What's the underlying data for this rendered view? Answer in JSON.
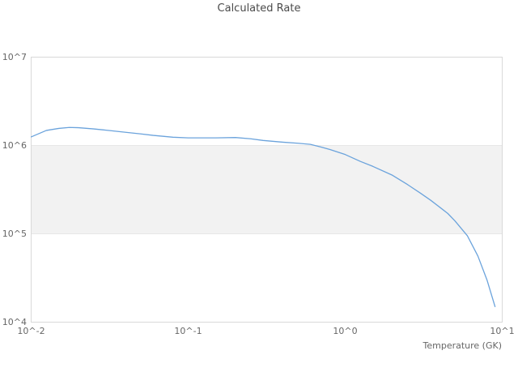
{
  "title": "Calculated Rate",
  "colors": {
    "line": "#6ba3dc",
    "band": "#f2f2f2",
    "band_edge": "#e7e7e7",
    "plot_border": "#d9d9d9",
    "title_text": "#4a4a4a",
    "tick_text": "#666666",
    "background": "#ffffff"
  },
  "chart_data": {
    "type": "line",
    "title": "Calculated Rate",
    "xlabel": "Temperature (GK)",
    "ylabel": "",
    "xscale": "log",
    "yscale": "log",
    "xlim": [
      0.01,
      10
    ],
    "ylim": [
      10000,
      10000000
    ],
    "x_tick_labels": [
      "10^-2",
      "10^-1",
      "10^0",
      "10^1"
    ],
    "x_tick_values": [
      0.01,
      0.1,
      1,
      10
    ],
    "y_tick_labels": [
      "10^4",
      "10^5",
      "10^6",
      "10^7"
    ],
    "y_tick_values": [
      10000,
      100000,
      1000000,
      10000000
    ],
    "shaded_band_y": [
      100000,
      1000000
    ],
    "grid": false,
    "legend": false,
    "series": [
      {
        "name": "Calculated Rate",
        "x": [
          0.01,
          0.0125,
          0.015,
          0.0175,
          0.02,
          0.025,
          0.03,
          0.04,
          0.05,
          0.06,
          0.08,
          0.1,
          0.15,
          0.2,
          0.25,
          0.3,
          0.4,
          0.5,
          0.6,
          0.7,
          0.8,
          0.9,
          1.0,
          1.25,
          1.5,
          2.0,
          2.5,
          3.0,
          3.5,
          4.0,
          4.5,
          5.0,
          6.0,
          7.0,
          8.0,
          9.0
        ],
        "y": [
          1250000,
          1480000,
          1560000,
          1600000,
          1590000,
          1540000,
          1490000,
          1410000,
          1350000,
          1300000,
          1240000,
          1220000,
          1220000,
          1230000,
          1190000,
          1140000,
          1090000,
          1060000,
          1030000,
          960000,
          900000,
          840000,
          790000,
          660000,
          580000,
          460000,
          360000,
          290000,
          240000,
          200000,
          170000,
          140000,
          95000,
          56000,
          30000,
          15000
        ]
      }
    ]
  }
}
